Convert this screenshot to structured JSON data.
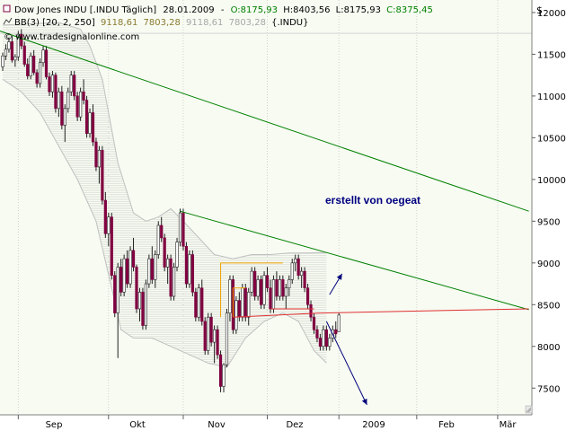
{
  "header": {
    "line1": {
      "instrument": "Dow Jones INDU [.INDU  Täglich]",
      "date": "28.01.2009",
      "sep": "-",
      "open": "O:8175,93",
      "high": "H:8403,56",
      "low": "L:8175,93",
      "close": "C:8375,45"
    },
    "line2": {
      "indicator": "BB(3) [20, 2, 250]",
      "v1": "9118,61",
      "v2": "7803,28",
      "v3": "9118,61",
      "v4": "7803,28",
      "symbol": "{.INDU}"
    },
    "line3": "© www.tradesignalonline.com",
    "currency": "$"
  },
  "annotation": "erstellt von oegeat",
  "colors": {
    "bull": "#ffffff",
    "bear": "#800040",
    "band": "#c0c0c0",
    "trend": "#008000",
    "support": "#e03030",
    "box": "#f0a000",
    "arrow": "#00007a",
    "annotation": "#000080",
    "bg": "#f7fbf2"
  },
  "chart_data": {
    "type": "candlestick",
    "x_tick_labels": [
      "Sep",
      "Okt",
      "Nov",
      "Dez",
      "2009",
      "Feb",
      "Mär"
    ],
    "y_ticks": [
      7500,
      8000,
      8500,
      9000,
      9500,
      10000,
      10500,
      11000,
      11500,
      12000
    ],
    "ylim": [
      7180,
      12150
    ],
    "grid": "vertical-dotted",
    "candles": [
      [
        11350,
        11520,
        11300,
        11480
      ],
      [
        11480,
        11620,
        11430,
        11560
      ],
      [
        11560,
        11700,
        11520,
        11650
      ],
      [
        11650,
        11720,
        11400,
        11430
      ],
      [
        11430,
        11500,
        11350,
        11470
      ],
      [
        11470,
        11780,
        11420,
        11740
      ],
      [
        11740,
        11800,
        11560,
        11600
      ],
      [
        11600,
        11650,
        11350,
        11380
      ],
      [
        11380,
        11450,
        11200,
        11240
      ],
      [
        11240,
        11520,
        11200,
        11480
      ],
      [
        11480,
        11550,
        11250,
        11280
      ],
      [
        11280,
        11320,
        11100,
        11150
      ],
      [
        11150,
        11450,
        11100,
        11400
      ],
      [
        11400,
        11600,
        11350,
        11550
      ],
      [
        11550,
        11600,
        11200,
        11230
      ],
      [
        11230,
        11280,
        11000,
        11050
      ],
      [
        11050,
        11300,
        10980,
        11250
      ],
      [
        11250,
        11280,
        10800,
        10850
      ],
      [
        10850,
        11100,
        10750,
        11050
      ],
      [
        11050,
        11120,
        10600,
        10650
      ],
      [
        10650,
        10900,
        10450,
        10850
      ],
      [
        10850,
        11100,
        10800,
        11050
      ],
      [
        11050,
        11300,
        11000,
        11250
      ],
      [
        11250,
        11300,
        10950,
        11000
      ],
      [
        11000,
        11050,
        10700,
        10750
      ],
      [
        10750,
        11100,
        10700,
        11050
      ],
      [
        11050,
        11200,
        10900,
        10950
      ],
      [
        10950,
        11000,
        10500,
        10550
      ],
      [
        10550,
        10850,
        10500,
        10800
      ],
      [
        10800,
        10900,
        10400,
        10450
      ],
      [
        10450,
        10500,
        10100,
        10150
      ],
      [
        10150,
        10400,
        9950,
        10350
      ],
      [
        10350,
        10400,
        9700,
        9750
      ],
      [
        9750,
        9850,
        9300,
        9350
      ],
      [
        9350,
        9600,
        9200,
        9550
      ],
      [
        9550,
        9600,
        8800,
        8850
      ],
      [
        8850,
        8900,
        8350,
        8400
      ],
      [
        8400,
        9000,
        7860,
        8950
      ],
      [
        8950,
        9050,
        8600,
        8650
      ],
      [
        8650,
        9100,
        8600,
        9050
      ],
      [
        9050,
        9150,
        8700,
        8750
      ],
      [
        8750,
        9200,
        8700,
        9150
      ],
      [
        9150,
        9300,
        8900,
        8950
      ],
      [
        8950,
        8980,
        8400,
        8450
      ],
      [
        8450,
        8700,
        8300,
        8650
      ],
      [
        8650,
        8700,
        8200,
        8250
      ],
      [
        8250,
        8800,
        8200,
        8750
      ],
      [
        8750,
        9100,
        8700,
        9050
      ],
      [
        9050,
        9200,
        8750,
        8800
      ],
      [
        8800,
        9150,
        8700,
        9100
      ],
      [
        9100,
        9500,
        9050,
        9450
      ],
      [
        9450,
        9550,
        9250,
        9300
      ],
      [
        9300,
        9350,
        8900,
        8950
      ],
      [
        8950,
        9100,
        8750,
        9050
      ],
      [
        9050,
        9100,
        8550,
        8600
      ],
      [
        8600,
        9000,
        8550,
        8950
      ],
      [
        8950,
        9300,
        8900,
        9250
      ],
      [
        9250,
        9650,
        9200,
        9600
      ],
      [
        9600,
        9650,
        9150,
        9200
      ],
      [
        9200,
        9250,
        8700,
        8750
      ],
      [
        8750,
        9150,
        8700,
        9100
      ],
      [
        9100,
        9150,
        8600,
        8650
      ],
      [
        8650,
        8700,
        8300,
        8350
      ],
      [
        8350,
        8750,
        8300,
        8700
      ],
      [
        8700,
        8800,
        8250,
        8300
      ],
      [
        8300,
        8350,
        7900,
        7950
      ],
      [
        7950,
        8400,
        7900,
        8350
      ],
      [
        8350,
        8400,
        8000,
        8050
      ],
      [
        8050,
        8250,
        7800,
        8200
      ],
      [
        8200,
        8250,
        7850,
        7900
      ],
      [
        7900,
        7950,
        7450,
        7520
      ],
      [
        7520,
        7800,
        7450,
        7780
      ],
      [
        7780,
        8450,
        7750,
        8400
      ],
      [
        8400,
        8850,
        8300,
        8800
      ],
      [
        8800,
        8850,
        8150,
        8200
      ],
      [
        8200,
        8600,
        8150,
        8550
      ],
      [
        8550,
        8650,
        8300,
        8350
      ],
      [
        8350,
        8750,
        8300,
        8700
      ],
      [
        8700,
        8750,
        8300,
        8350
      ],
      [
        8350,
        8700,
        8250,
        8650
      ],
      [
        8650,
        8950,
        8600,
        8900
      ],
      [
        8900,
        8950,
        8550,
        8600
      ],
      [
        8600,
        8850,
        8550,
        8800
      ],
      [
        8800,
        8850,
        8450,
        8500
      ],
      [
        8500,
        8900,
        8450,
        8850
      ],
      [
        8850,
        8950,
        8650,
        8700
      ],
      [
        8700,
        8800,
        8400,
        8450
      ],
      [
        8450,
        8850,
        8400,
        8800
      ],
      [
        8800,
        8900,
        8550,
        8600
      ],
      [
        8600,
        8850,
        8550,
        8800
      ],
      [
        8800,
        8850,
        8550,
        8600
      ],
      [
        8600,
        8750,
        8450,
        8700
      ],
      [
        8700,
        8850,
        8600,
        8800
      ],
      [
        8800,
        9050,
        8750,
        9000
      ],
      [
        9000,
        9100,
        8900,
        9050
      ],
      [
        9050,
        9100,
        8800,
        8850
      ],
      [
        8850,
        8950,
        8700,
        8900
      ],
      [
        8900,
        8950,
        8650,
        8700
      ],
      [
        8700,
        8750,
        8450,
        8500
      ],
      [
        8500,
        8550,
        8300,
        8350
      ],
      [
        8350,
        8400,
        8150,
        8200
      ],
      [
        8200,
        8250,
        8050,
        8100
      ],
      [
        8100,
        8150,
        7950,
        8000
      ],
      [
        8000,
        8250,
        7950,
        8200
      ],
      [
        8200,
        8250,
        7950,
        8000
      ],
      [
        8000,
        8150,
        7950,
        8100
      ],
      [
        8100,
        8250,
        8050,
        8200
      ],
      [
        8200,
        8300,
        8100,
        8150
      ],
      [
        8175.93,
        8403.56,
        8175.93,
        8375.45
      ]
    ],
    "bollinger_upper": [
      [
        0,
        11850
      ],
      [
        18,
        11880
      ],
      [
        25,
        11800
      ],
      [
        28,
        11600
      ],
      [
        32,
        11200
      ],
      [
        37,
        10200
      ],
      [
        42,
        9600
      ],
      [
        46,
        9500
      ],
      [
        50,
        9550
      ],
      [
        54,
        9650
      ],
      [
        58,
        9500
      ],
      [
        63,
        9300
      ],
      [
        68,
        9100
      ],
      [
        74,
        9050
      ],
      [
        80,
        9100
      ],
      [
        86,
        9100
      ],
      [
        92,
        9120
      ],
      [
        98,
        9120
      ],
      [
        104,
        9125
      ]
    ],
    "bollinger_lower": [
      [
        0,
        11200
      ],
      [
        6,
        11050
      ],
      [
        12,
        10800
      ],
      [
        18,
        10400
      ],
      [
        24,
        10000
      ],
      [
        30,
        9500
      ],
      [
        35,
        8700
      ],
      [
        38,
        8200
      ],
      [
        42,
        8100
      ],
      [
        48,
        8100
      ],
      [
        54,
        8000
      ],
      [
        60,
        7900
      ],
      [
        66,
        7800
      ],
      [
        72,
        7750
      ],
      [
        78,
        8100
      ],
      [
        84,
        8300
      ],
      [
        90,
        8400
      ],
      [
        95,
        8300
      ],
      [
        100,
        7950
      ],
      [
        104,
        7800
      ]
    ],
    "trendline_1": [
      [
        -1,
        11780
      ],
      [
        169,
        9620
      ]
    ],
    "trendline_2": [
      [
        57,
        9620
      ],
      [
        169,
        8440
      ]
    ],
    "support_line": [
      [
        74,
        8350
      ],
      [
        102,
        8400
      ],
      [
        169,
        8450
      ]
    ],
    "box_lines": [
      [
        [
          70,
          9000
        ],
        [
          90,
          9000
        ]
      ],
      [
        [
          70,
          8350
        ],
        [
          70,
          9000
        ]
      ],
      [
        [
          74,
          8350
        ],
        [
          74,
          8700
        ]
      ],
      [
        [
          74,
          8700
        ],
        [
          78,
          8700
        ]
      ],
      [
        [
          86,
          8450
        ],
        [
          100,
          8450
        ]
      ]
    ],
    "arrows": [
      {
        "from": [
          105,
          8620
        ],
        "to": [
          109,
          8870
        ]
      },
      {
        "from": [
          104,
          8300
        ],
        "to": [
          117,
          7300
        ]
      }
    ]
  }
}
